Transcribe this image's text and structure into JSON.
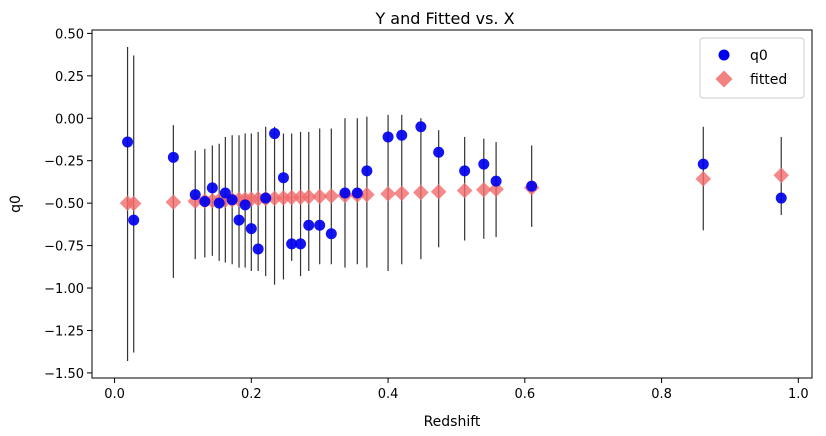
{
  "chart_data": {
    "type": "scatter",
    "title": "Y and Fitted vs. X",
    "xlabel": "Redshift",
    "ylabel": "q0",
    "xlim": [
      -0.033,
      1.02
    ],
    "ylim": [
      -1.53,
      0.52
    ],
    "xticks": [
      0.0,
      0.2,
      0.4,
      0.6,
      0.8,
      1.0
    ],
    "xtick_labels": [
      "0.0",
      "0.2",
      "0.4",
      "0.6",
      "0.8",
      "1.0"
    ],
    "yticks": [
      0.5,
      0.25,
      0.0,
      -0.25,
      -0.5,
      -0.75,
      -1.0,
      -1.25,
      -1.5
    ],
    "ytick_labels": [
      "0.50",
      "0.25",
      "0.00",
      "−0.25",
      "−0.50",
      "−0.75",
      "−1.00",
      "−1.25",
      "−1.50"
    ],
    "grid": false,
    "legend_position": "top-right",
    "series": [
      {
        "name": "q0",
        "marker": "circle",
        "color": "#0000ee",
        "points": [
          {
            "x": 0.019,
            "y": -0.14,
            "lo": -1.43,
            "hi": 0.42
          },
          {
            "x": 0.028,
            "y": -0.6,
            "lo": -1.38,
            "hi": 0.37
          },
          {
            "x": 0.086,
            "y": -0.23,
            "lo": -0.94,
            "hi": -0.04
          },
          {
            "x": 0.118,
            "y": -0.45,
            "lo": -0.83,
            "hi": -0.19
          },
          {
            "x": 0.132,
            "y": -0.49,
            "lo": -0.82,
            "hi": -0.18
          },
          {
            "x": 0.143,
            "y": -0.41,
            "lo": -0.81,
            "hi": -0.16
          },
          {
            "x": 0.153,
            "y": -0.5,
            "lo": -0.84,
            "hi": -0.15
          },
          {
            "x": 0.162,
            "y": -0.44,
            "lo": -0.85,
            "hi": -0.11
          },
          {
            "x": 0.172,
            "y": -0.48,
            "lo": -0.86,
            "hi": -0.1
          },
          {
            "x": 0.182,
            "y": -0.6,
            "lo": -0.88,
            "hi": -0.1
          },
          {
            "x": 0.191,
            "y": -0.51,
            "lo": -0.88,
            "hi": -0.09
          },
          {
            "x": 0.2,
            "y": -0.65,
            "lo": -0.9,
            "hi": -0.09
          },
          {
            "x": 0.21,
            "y": -0.77,
            "lo": -0.9,
            "hi": -0.08
          },
          {
            "x": 0.221,
            "y": -0.47,
            "lo": -0.93,
            "hi": -0.05
          },
          {
            "x": 0.234,
            "y": -0.09,
            "lo": -0.98,
            "hi": -0.05
          },
          {
            "x": 0.247,
            "y": -0.35,
            "lo": -0.95,
            "hi": -0.09
          },
          {
            "x": 0.259,
            "y": -0.74,
            "lo": -0.84,
            "hi": -0.09
          },
          {
            "x": 0.272,
            "y": -0.74,
            "lo": -0.93,
            "hi": -0.08
          },
          {
            "x": 0.284,
            "y": -0.63,
            "lo": -0.9,
            "hi": -0.08
          },
          {
            "x": 0.3,
            "y": -0.63,
            "lo": -0.86,
            "hi": -0.06
          },
          {
            "x": 0.317,
            "y": -0.68,
            "lo": -0.86,
            "hi": -0.06
          },
          {
            "x": 0.337,
            "y": -0.44,
            "lo": -0.88,
            "hi": 0.0
          },
          {
            "x": 0.355,
            "y": -0.44,
            "lo": -0.86,
            "hi": 0.0
          },
          {
            "x": 0.369,
            "y": -0.31,
            "lo": -0.88,
            "hi": 0.01
          },
          {
            "x": 0.4,
            "y": -0.11,
            "lo": -0.9,
            "hi": 0.02
          },
          {
            "x": 0.42,
            "y": -0.1,
            "lo": -0.86,
            "hi": 0.02
          },
          {
            "x": 0.448,
            "y": -0.05,
            "lo": -0.83,
            "hi": 0.0
          },
          {
            "x": 0.474,
            "y": -0.2,
            "lo": -0.76,
            "hi": -0.07
          },
          {
            "x": 0.512,
            "y": -0.31,
            "lo": -0.72,
            "hi": -0.11
          },
          {
            "x": 0.54,
            "y": -0.27,
            "lo": -0.71,
            "hi": -0.12
          },
          {
            "x": 0.558,
            "y": -0.37,
            "lo": -0.7,
            "hi": -0.14
          },
          {
            "x": 0.61,
            "y": -0.4,
            "lo": -0.64,
            "hi": -0.16
          },
          {
            "x": 0.861,
            "y": -0.27,
            "lo": -0.66,
            "hi": -0.05
          },
          {
            "x": 0.975,
            "y": -0.47,
            "lo": -0.57,
            "hi": -0.11
          }
        ]
      },
      {
        "name": "fitted",
        "marker": "diamond",
        "color": "#f26b6b",
        "points": [
          {
            "x": 0.019,
            "y": -0.5
          },
          {
            "x": 0.028,
            "y": -0.502
          },
          {
            "x": 0.086,
            "y": -0.494
          },
          {
            "x": 0.118,
            "y": -0.489
          },
          {
            "x": 0.132,
            "y": -0.487
          },
          {
            "x": 0.143,
            "y": -0.485
          },
          {
            "x": 0.153,
            "y": -0.484
          },
          {
            "x": 0.162,
            "y": -0.482
          },
          {
            "x": 0.172,
            "y": -0.481
          },
          {
            "x": 0.182,
            "y": -0.479
          },
          {
            "x": 0.191,
            "y": -0.478
          },
          {
            "x": 0.2,
            "y": -0.476
          },
          {
            "x": 0.21,
            "y": -0.475
          },
          {
            "x": 0.221,
            "y": -0.473
          },
          {
            "x": 0.234,
            "y": -0.471
          },
          {
            "x": 0.247,
            "y": -0.469
          },
          {
            "x": 0.259,
            "y": -0.467
          },
          {
            "x": 0.272,
            "y": -0.465
          },
          {
            "x": 0.284,
            "y": -0.463
          },
          {
            "x": 0.3,
            "y": -0.461
          },
          {
            "x": 0.317,
            "y": -0.458
          },
          {
            "x": 0.337,
            "y": -0.455
          },
          {
            "x": 0.355,
            "y": -0.452
          },
          {
            "x": 0.369,
            "y": -0.45
          },
          {
            "x": 0.4,
            "y": -0.445
          },
          {
            "x": 0.42,
            "y": -0.442
          },
          {
            "x": 0.448,
            "y": -0.437
          },
          {
            "x": 0.474,
            "y": -0.433
          },
          {
            "x": 0.512,
            "y": -0.426
          },
          {
            "x": 0.54,
            "y": -0.421
          },
          {
            "x": 0.558,
            "y": -0.418
          },
          {
            "x": 0.61,
            "y": -0.409
          },
          {
            "x": 0.861,
            "y": -0.357
          },
          {
            "x": 0.975,
            "y": -0.336
          }
        ]
      }
    ]
  }
}
